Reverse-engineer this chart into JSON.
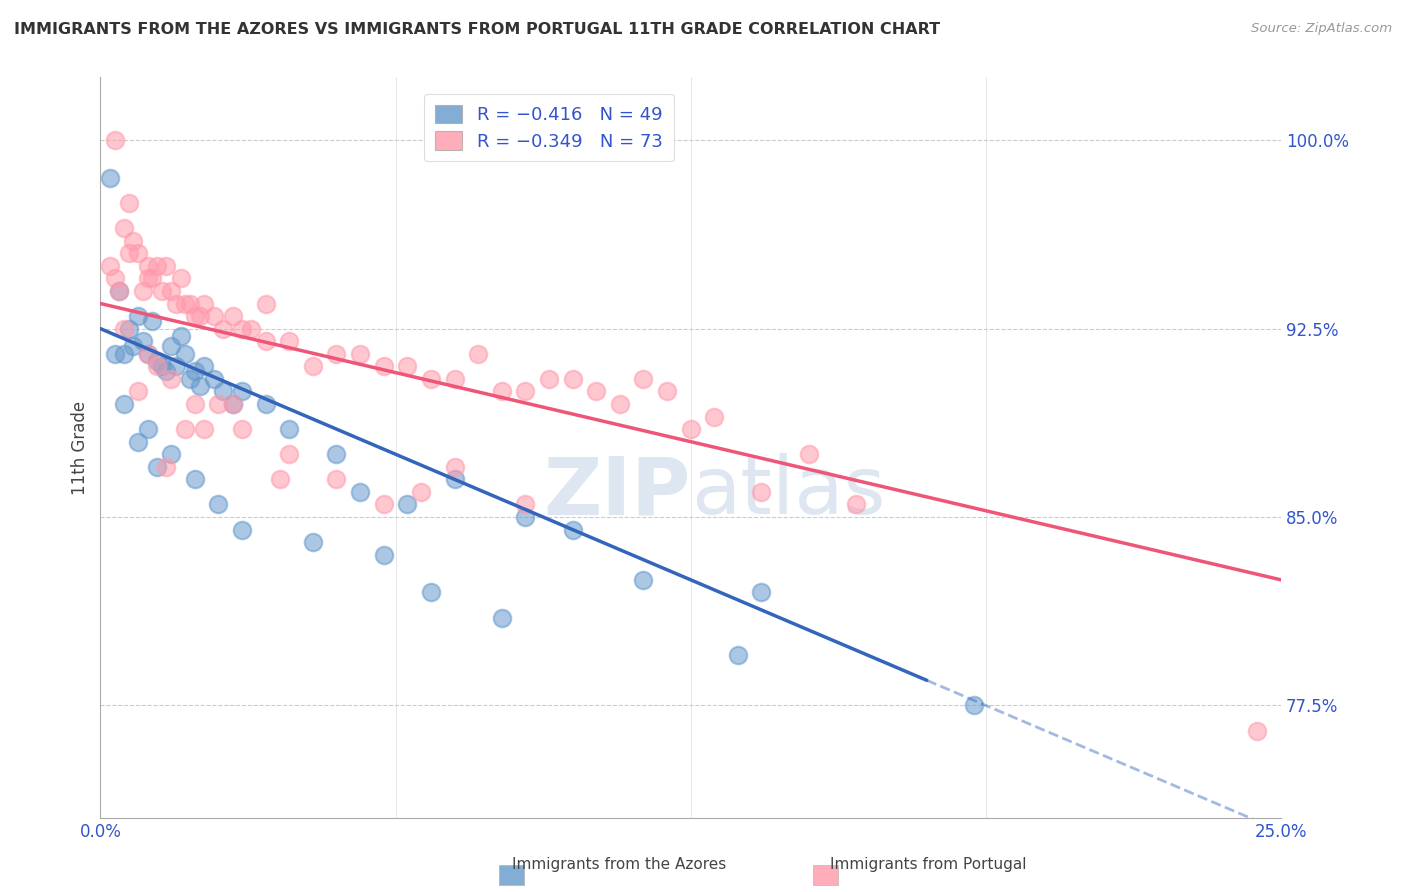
{
  "title": "IMMIGRANTS FROM THE AZORES VS IMMIGRANTS FROM PORTUGAL 11TH GRADE CORRELATION CHART",
  "source": "Source: ZipAtlas.com",
  "ylabel": "11th Grade",
  "xlim": [
    0.0,
    25.0
  ],
  "ylim": [
    73.0,
    102.5
  ],
  "yticks": [
    77.5,
    85.0,
    92.5,
    100.0
  ],
  "ytick_labels": [
    "77.5%",
    "85.0%",
    "92.5%",
    "100.0%"
  ],
  "xticks": [
    0.0,
    6.25,
    12.5,
    18.75,
    25.0
  ],
  "xtick_labels": [
    "0.0%",
    "",
    "",
    "",
    "25.0%"
  ],
  "blue_color": "#6699CC",
  "pink_color": "#FF99AA",
  "blue_line_color": "#3366BB",
  "pink_line_color": "#EE5577",
  "legend_r_color": "#3355CC",
  "watermark_color": "#C8D8E8",
  "azores_x": [
    0.2,
    0.3,
    0.4,
    0.5,
    0.6,
    0.7,
    0.8,
    0.9,
    1.0,
    1.1,
    1.2,
    1.3,
    1.4,
    1.5,
    1.6,
    1.7,
    1.8,
    1.9,
    2.0,
    2.1,
    2.2,
    2.4,
    2.6,
    2.8,
    3.0,
    3.5,
    4.0,
    5.0,
    5.5,
    6.5,
    7.5,
    9.0,
    10.0,
    11.5,
    14.0,
    0.5,
    0.8,
    1.0,
    1.2,
    1.5,
    2.0,
    2.5,
    3.0,
    4.5,
    6.0,
    7.0,
    8.5,
    13.5,
    18.5
  ],
  "azores_y": [
    98.5,
    91.5,
    94.0,
    91.5,
    92.5,
    91.8,
    93.0,
    92.0,
    91.5,
    92.8,
    91.2,
    91.0,
    90.8,
    91.8,
    91.0,
    92.2,
    91.5,
    90.5,
    90.8,
    90.2,
    91.0,
    90.5,
    90.0,
    89.5,
    90.0,
    89.5,
    88.5,
    87.5,
    86.0,
    85.5,
    86.5,
    85.0,
    84.5,
    82.5,
    82.0,
    89.5,
    88.0,
    88.5,
    87.0,
    87.5,
    86.5,
    85.5,
    84.5,
    84.0,
    83.5,
    82.0,
    81.0,
    79.5,
    77.5
  ],
  "portugal_x": [
    0.2,
    0.3,
    0.4,
    0.5,
    0.6,
    0.7,
    0.8,
    0.9,
    1.0,
    1.1,
    1.2,
    1.3,
    1.4,
    1.5,
    1.6,
    1.7,
    1.8,
    1.9,
    2.0,
    2.1,
    2.2,
    2.4,
    2.6,
    2.8,
    3.0,
    3.2,
    3.5,
    4.0,
    4.5,
    5.0,
    5.5,
    6.0,
    6.5,
    7.0,
    7.5,
    8.0,
    8.5,
    9.0,
    9.5,
    10.0,
    10.5,
    11.0,
    11.5,
    12.0,
    12.5,
    13.0,
    14.0,
    15.0,
    16.0,
    24.5,
    0.5,
    0.8,
    1.0,
    1.2,
    1.5,
    2.0,
    2.5,
    3.0,
    4.0,
    5.0,
    6.0,
    7.5,
    9.0,
    3.5,
    1.8,
    2.8,
    1.0,
    2.2,
    0.6,
    1.4,
    3.8,
    6.8,
    0.3
  ],
  "portugal_y": [
    95.0,
    94.5,
    94.0,
    96.5,
    95.5,
    96.0,
    95.5,
    94.0,
    95.0,
    94.5,
    95.0,
    94.0,
    95.0,
    94.0,
    93.5,
    94.5,
    93.5,
    93.5,
    93.0,
    93.0,
    93.5,
    93.0,
    92.5,
    93.0,
    92.5,
    92.5,
    92.0,
    92.0,
    91.0,
    91.5,
    91.5,
    91.0,
    91.0,
    90.5,
    90.5,
    91.5,
    90.0,
    90.0,
    90.5,
    90.5,
    90.0,
    89.5,
    90.5,
    90.0,
    88.5,
    89.0,
    86.0,
    87.5,
    85.5,
    76.5,
    92.5,
    90.0,
    91.5,
    91.0,
    90.5,
    89.5,
    89.5,
    88.5,
    87.5,
    86.5,
    85.5,
    87.0,
    85.5,
    93.5,
    88.5,
    89.5,
    94.5,
    88.5,
    97.5,
    87.0,
    86.5,
    86.0,
    100.0
  ],
  "blue_trend_x0": 0.0,
  "blue_trend_y0": 92.5,
  "blue_trend_x1": 17.5,
  "blue_trend_y1": 78.5,
  "blue_dash_x0": 17.5,
  "blue_dash_y0": 78.5,
  "blue_dash_x1": 25.0,
  "blue_dash_y1": 72.5,
  "pink_trend_x0": 0.0,
  "pink_trend_y0": 93.5,
  "pink_trend_x1": 25.0,
  "pink_trend_y1": 82.5
}
